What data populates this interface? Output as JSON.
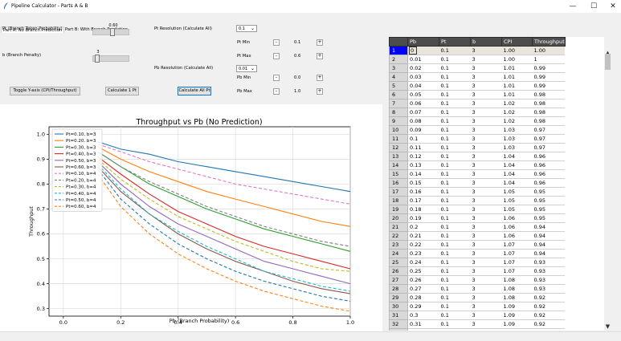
{
  "window": {
    "title": "Pipeline Calculator - Parts A & B",
    "minimize": "—",
    "maximize": "☐",
    "close": "✕"
  },
  "tabs": [
    {
      "label": "Part A: No Branch Prediction"
    },
    {
      "label": "Part B: With Branch Prediction"
    }
  ],
  "controls": {
    "pt_label": "Pt (Branch Taken Probability)",
    "pt_value": "0.60",
    "b_label": "b (Branch Penalty)",
    "b_value": "3",
    "pt_resolution_label": "Pt Resolution (Calculate All)",
    "pt_resolution_value": "0.1",
    "pt_min_label": "Pt Min",
    "pt_min_value": "0.1",
    "pt_max_label": "Pt Max",
    "pt_max_value": "0.6",
    "pb_resolution_label": "Pb Resolution (Calculate All)",
    "pb_resolution_value": "0.01",
    "pb_min_label": "Pb Min",
    "pb_min_value": "0.0",
    "pb_max_label": "Pb Max",
    "pb_max_value": "1.0",
    "toggle_button": "Toggle Y-axis (CPI/Throughput)",
    "calc1_button": "Calculate 1 Pt",
    "calcall_button": "Calculate All Pt",
    "spin_minus": "-",
    "spin_plus": "+"
  },
  "table": {
    "columns": [
      "",
      "Pb",
      "Pt",
      "b",
      "CPI",
      "Throughput"
    ],
    "rows": [
      [
        "1",
        "0",
        "0.1",
        "3",
        "1.00",
        "1.00"
      ],
      [
        "2",
        "0.01",
        "0.1",
        "3",
        "1.00",
        "1"
      ],
      [
        "3",
        "0.02",
        "0.1",
        "3",
        "1.01",
        "0.99"
      ],
      [
        "4",
        "0.03",
        "0.1",
        "3",
        "1.01",
        "0.99"
      ],
      [
        "5",
        "0.04",
        "0.1",
        "3",
        "1.01",
        "0.99"
      ],
      [
        "6",
        "0.05",
        "0.1",
        "3",
        "1.01",
        "0.98"
      ],
      [
        "7",
        "0.06",
        "0.1",
        "3",
        "1.02",
        "0.98"
      ],
      [
        "8",
        "0.07",
        "0.1",
        "3",
        "1.02",
        "0.98"
      ],
      [
        "9",
        "0.08",
        "0.1",
        "3",
        "1.02",
        "0.98"
      ],
      [
        "10",
        "0.09",
        "0.1",
        "3",
        "1.03",
        "0.97"
      ],
      [
        "11",
        "0.1",
        "0.1",
        "3",
        "1.03",
        "0.97"
      ],
      [
        "12",
        "0.11",
        "0.1",
        "3",
        "1.03",
        "0.97"
      ],
      [
        "13",
        "0.12",
        "0.1",
        "3",
        "1.04",
        "0.96"
      ],
      [
        "14",
        "0.13",
        "0.1",
        "3",
        "1.04",
        "0.96"
      ],
      [
        "15",
        "0.14",
        "0.1",
        "3",
        "1.04",
        "0.96"
      ],
      [
        "16",
        "0.15",
        "0.1",
        "3",
        "1.04",
        "0.96"
      ],
      [
        "17",
        "0.16",
        "0.1",
        "3",
        "1.05",
        "0.95"
      ],
      [
        "18",
        "0.17",
        "0.1",
        "3",
        "1.05",
        "0.95"
      ],
      [
        "19",
        "0.18",
        "0.1",
        "3",
        "1.05",
        "0.95"
      ],
      [
        "20",
        "0.19",
        "0.1",
        "3",
        "1.06",
        "0.95"
      ],
      [
        "21",
        "0.2",
        "0.1",
        "3",
        "1.06",
        "0.94"
      ],
      [
        "22",
        "0.21",
        "0.1",
        "3",
        "1.06",
        "0.94"
      ],
      [
        "23",
        "0.22",
        "0.1",
        "3",
        "1.07",
        "0.94"
      ],
      [
        "24",
        "0.23",
        "0.1",
        "3",
        "1.07",
        "0.94"
      ],
      [
        "25",
        "0.24",
        "0.1",
        "3",
        "1.07",
        "0.93"
      ],
      [
        "26",
        "0.25",
        "0.1",
        "3",
        "1.07",
        "0.93"
      ],
      [
        "27",
        "0.26",
        "0.1",
        "3",
        "1.08",
        "0.93"
      ],
      [
        "28",
        "0.27",
        "0.1",
        "3",
        "1.08",
        "0.93"
      ],
      [
        "29",
        "0.28",
        "0.1",
        "3",
        "1.08",
        "0.92"
      ],
      [
        "30",
        "0.29",
        "0.1",
        "3",
        "1.09",
        "0.92"
      ],
      [
        "31",
        "0.3",
        "0.1",
        "3",
        "1.09",
        "0.92"
      ],
      [
        "32",
        "0.31",
        "0.1",
        "3",
        "1.09",
        "0.92"
      ],
      [
        "33",
        "0.32",
        "0.1",
        "3",
        "1.10",
        "0.91"
      ]
    ]
  },
  "chart_data": {
    "type": "line",
    "title": "Throughput vs Pb (No Prediction)",
    "xlabel": "Pb (Branch Probability)",
    "ylabel": "Throughput",
    "xlim": [
      -0.05,
      1.0
    ],
    "ylim": [
      0.27,
      1.03
    ],
    "xticks": [
      "0.0",
      "0.2",
      "0.4",
      "0.6",
      "0.8",
      "1.0"
    ],
    "yticks": [
      "0.3",
      "0.4",
      "0.5",
      "0.6",
      "0.7",
      "0.8",
      "0.9",
      "1.0"
    ],
    "grid": true,
    "legend_position": "top-left",
    "x": [
      0.12,
      0.2,
      0.3,
      0.4,
      0.5,
      0.6,
      0.7,
      0.8,
      0.9,
      1.0
    ],
    "series": [
      {
        "name": "Pt=0.10, b=3",
        "color": "#1f77b4",
        "dash": "solid",
        "values": [
          0.97,
          0.94,
          0.92,
          0.89,
          0.87,
          0.85,
          0.83,
          0.81,
          0.79,
          0.77
        ]
      },
      {
        "name": "Pt=0.20, b=3",
        "color": "#ff7f0e",
        "dash": "solid",
        "values": [
          0.95,
          0.9,
          0.85,
          0.81,
          0.77,
          0.74,
          0.71,
          0.68,
          0.65,
          0.63
        ]
      },
      {
        "name": "Pt=0.30, b=3",
        "color": "#2ca02c",
        "dash": "solid",
        "values": [
          0.93,
          0.87,
          0.8,
          0.75,
          0.7,
          0.66,
          0.62,
          0.59,
          0.56,
          0.53
        ]
      },
      {
        "name": "Pt=0.40, b=3",
        "color": "#d62728",
        "dash": "solid",
        "values": [
          0.91,
          0.84,
          0.76,
          0.69,
          0.64,
          0.59,
          0.55,
          0.52,
          0.49,
          0.46
        ]
      },
      {
        "name": "Pt=0.50, b=3",
        "color": "#9467bd",
        "dash": "solid",
        "values": [
          0.89,
          0.8,
          0.71,
          0.64,
          0.59,
          0.54,
          0.49,
          0.46,
          0.43,
          0.4
        ]
      },
      {
        "name": "Pt=0.60, b=3",
        "color": "#8c564b",
        "dash": "solid",
        "values": [
          0.87,
          0.77,
          0.68,
          0.6,
          0.54,
          0.49,
          0.45,
          0.41,
          0.38,
          0.36
        ]
      },
      {
        "name": "Pt=0.10, b=4",
        "color": "#e377c2",
        "dash": "dashed",
        "values": [
          0.96,
          0.93,
          0.89,
          0.86,
          0.83,
          0.8,
          0.78,
          0.76,
          0.74,
          0.72
        ]
      },
      {
        "name": "Pt=0.20, b=4",
        "color": "#7f7f7f",
        "dash": "dashed",
        "values": [
          0.93,
          0.87,
          0.81,
          0.76,
          0.71,
          0.67,
          0.63,
          0.6,
          0.57,
          0.55
        ]
      },
      {
        "name": "Pt=0.30, b=4",
        "color": "#bcbd22",
        "dash": "dashed",
        "values": [
          0.9,
          0.82,
          0.74,
          0.67,
          0.62,
          0.57,
          0.53,
          0.49,
          0.46,
          0.45
        ]
      },
      {
        "name": "Pt=0.40, b=4",
        "color": "#17becf",
        "dash": "dashed",
        "values": [
          0.88,
          0.78,
          0.68,
          0.61,
          0.55,
          0.5,
          0.45,
          0.42,
          0.39,
          0.37
        ]
      },
      {
        "name": "Pt=0.50, b=4",
        "color": "#1f77b4",
        "dash": "dashed",
        "values": [
          0.86,
          0.74,
          0.64,
          0.56,
          0.5,
          0.45,
          0.41,
          0.38,
          0.35,
          0.33
        ]
      },
      {
        "name": "Pt=0.60, b=4",
        "color": "#ff7f0e",
        "dash": "dashed",
        "values": [
          0.84,
          0.71,
          0.6,
          0.52,
          0.46,
          0.41,
          0.37,
          0.34,
          0.31,
          0.29
        ]
      }
    ]
  }
}
